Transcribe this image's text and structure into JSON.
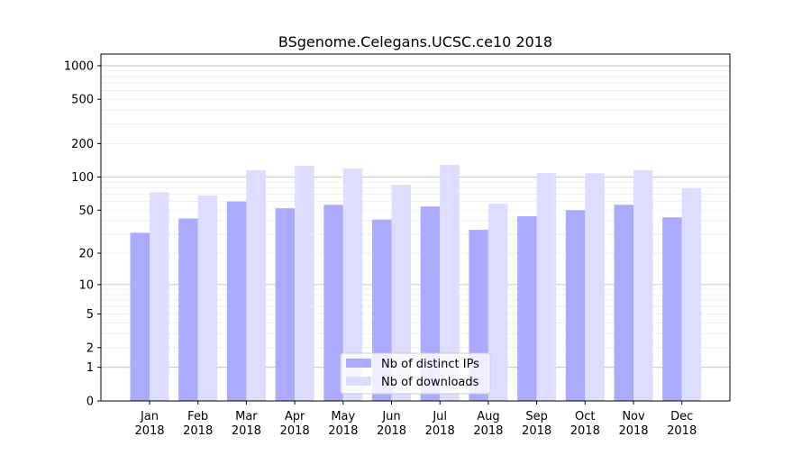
{
  "chart_data": {
    "type": "bar",
    "title": "BSgenome.Celegans.UCSC.ce10 2018",
    "xlabel": "",
    "ylabel": "",
    "yscale": "log(1+y)",
    "ylim": [
      0,
      1200
    ],
    "yticks": [
      0,
      1,
      2,
      5,
      10,
      20,
      50,
      100,
      200,
      500,
      1000
    ],
    "grid": true,
    "legend_position": "bottom-center",
    "categories": [
      "Jan\n2018",
      "Feb\n2018",
      "Mar\n2018",
      "Apr\n2018",
      "May\n2018",
      "Jun\n2018",
      "Jul\n2018",
      "Aug\n2018",
      "Sep\n2018",
      "Oct\n2018",
      "Nov\n2018",
      "Dec\n2018"
    ],
    "series": [
      {
        "name": "Nb of distinct IPs",
        "color": "#aaaaff",
        "values": [
          31,
          42,
          60,
          52,
          56,
          41,
          54,
          33,
          44,
          50,
          56,
          43
        ]
      },
      {
        "name": "Nb of downloads",
        "color": "#ddddff",
        "values": [
          73,
          68,
          115,
          126,
          119,
          85,
          129,
          57,
          109,
          108,
          115,
          79
        ]
      }
    ]
  }
}
